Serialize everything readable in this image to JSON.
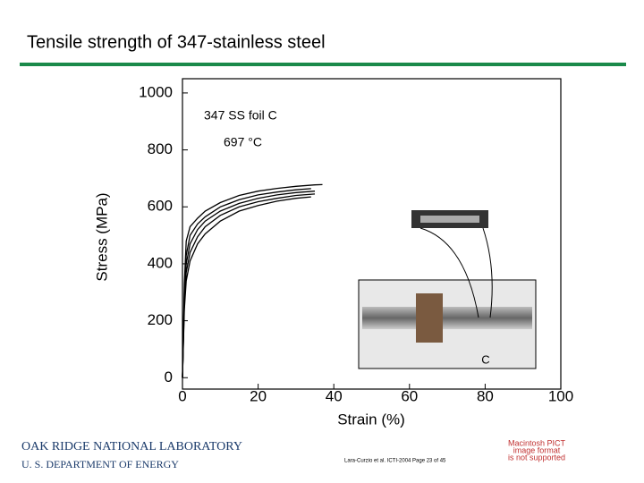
{
  "slide_title": "Tensile strength of 347-stainless steel",
  "chart_data": {
    "type": "line",
    "x_label": "Strain (%)",
    "y_label": "Stress (MPa)",
    "annotations": [
      "347 SS foil C",
      "697 °C"
    ],
    "inset_label": "C",
    "xlim": [
      0,
      100
    ],
    "xticks": [
      0,
      20,
      40,
      60,
      80,
      100
    ],
    "ylim": [
      -40,
      1050
    ],
    "yticks": [
      0,
      200,
      400,
      600,
      800,
      1000
    ],
    "color": "#000000",
    "series": [
      {
        "x": [
          0,
          0.5,
          1,
          2,
          4,
          6,
          10,
          15,
          20,
          25,
          30,
          35,
          37
        ],
        "values": [
          0,
          330,
          480,
          530,
          560,
          585,
          615,
          640,
          655,
          665,
          672,
          677,
          678
        ]
      },
      {
        "x": [
          0,
          0.5,
          1,
          2,
          4,
          6,
          10,
          15,
          20,
          25,
          30,
          34
        ],
        "values": [
          0,
          300,
          430,
          500,
          540,
          565,
          600,
          625,
          642,
          652,
          660,
          664
        ]
      },
      {
        "x": [
          0,
          0.5,
          1,
          2,
          4,
          6,
          10,
          15,
          20,
          25,
          30,
          35
        ],
        "values": [
          0,
          280,
          400,
          470,
          520,
          550,
          585,
          612,
          630,
          642,
          650,
          655
        ]
      },
      {
        "x": [
          0,
          0.5,
          1,
          2,
          4,
          6,
          10,
          15,
          20,
          25,
          30,
          35
        ],
        "values": [
          0,
          260,
          370,
          440,
          495,
          530,
          570,
          600,
          618,
          630,
          640,
          645
        ]
      },
      {
        "x": [
          0,
          0.5,
          1,
          2,
          4,
          6,
          10,
          15,
          20,
          25,
          30,
          34
        ],
        "values": [
          0,
          240,
          340,
          410,
          470,
          505,
          550,
          585,
          605,
          620,
          630,
          635
        ]
      }
    ]
  },
  "footer": {
    "org_line1": "OAK RIDGE NATIONAL LABORATORY",
    "org_line2": "U. S. DEPARTMENT OF ENERGY",
    "citation": "Lara-Curzio et al. ICTI-2004 Page 23 of 45",
    "pict_notice": [
      "Macintosh PICT",
      "image format",
      "is not supported"
    ]
  }
}
